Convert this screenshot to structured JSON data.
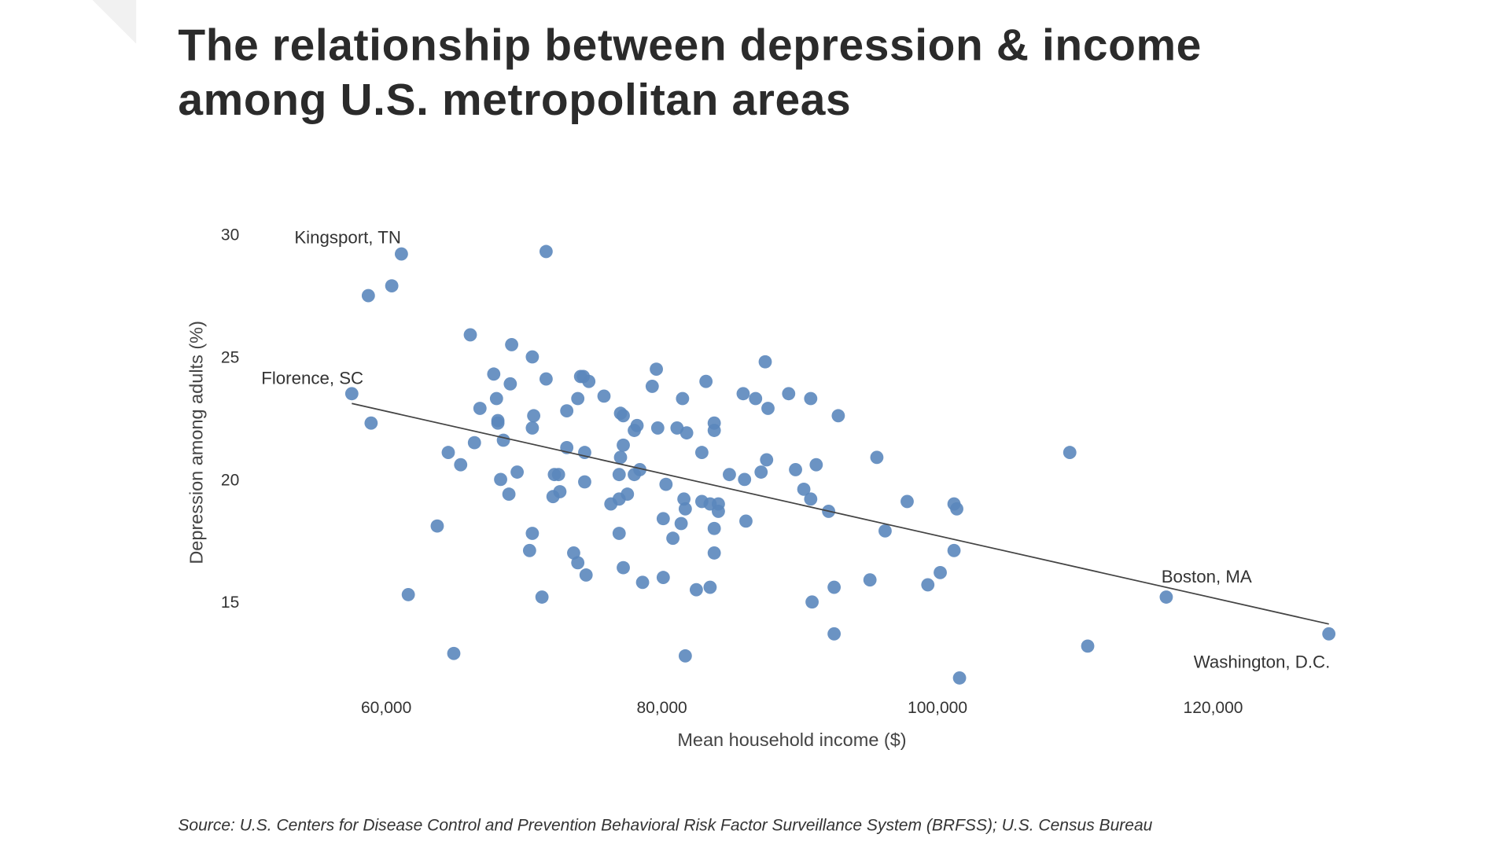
{
  "title_line1": "The relationship between depression & income",
  "title_line2": "among U.S. metropolitan areas",
  "source": "Source: U.S. Centers for Disease Control and Prevention Behavioral Risk Factor Surveillance System (BRFSS); U.S. Census Bureau",
  "chart_data": {
    "type": "scatter",
    "title": "The relationship between depression & income among U.S. metropolitan areas",
    "xlabel": "Mean household income ($)",
    "ylabel": "Depression among adults (%)",
    "xlim": [
      52500,
      130000
    ],
    "ylim": [
      11.5,
      30
    ],
    "x_ticks": [
      "60,000",
      "80,000",
      "100,000",
      "120,000"
    ],
    "x_tick_values": [
      60000,
      80000,
      100000,
      120000
    ],
    "y_ticks": [
      "30",
      "25",
      "20",
      "15"
    ],
    "y_tick_values": [
      30,
      25,
      20,
      15
    ],
    "grid": false,
    "point_color": "#5b87bd",
    "trendline": {
      "x": [
        57500,
        128400
      ],
      "y": [
        23.1,
        14.1
      ],
      "color": "#444444"
    },
    "annotations": [
      {
        "label": "Kingsport, TN",
        "x": 61100,
        "y": 29.2
      },
      {
        "label": "Florence, SC",
        "x": 57500,
        "y": 23.5
      },
      {
        "label": "Boston, MA",
        "x": 116600,
        "y": 15.2
      },
      {
        "label": "Washington, D.C.",
        "x": 128400,
        "y": 13.7
      }
    ],
    "points": [
      [
        61100,
        29.2
      ],
      [
        71600,
        29.3
      ],
      [
        58700,
        27.5
      ],
      [
        60400,
        27.9
      ],
      [
        66100,
        25.9
      ],
      [
        69100,
        25.5
      ],
      [
        70600,
        25.0
      ],
      [
        67800,
        24.3
      ],
      [
        71600,
        24.1
      ],
      [
        74100,
        24.2
      ],
      [
        74300,
        24.2
      ],
      [
        74700,
        24.0
      ],
      [
        79600,
        24.5
      ],
      [
        87500,
        24.8
      ],
      [
        57500,
        23.5
      ],
      [
        69000,
        23.9
      ],
      [
        68000,
        23.3
      ],
      [
        73900,
        23.3
      ],
      [
        75800,
        23.4
      ],
      [
        79300,
        23.8
      ],
      [
        83200,
        24.0
      ],
      [
        85900,
        23.5
      ],
      [
        86800,
        23.3
      ],
      [
        89200,
        23.5
      ],
      [
        90800,
        23.3
      ],
      [
        81500,
        23.3
      ],
      [
        66800,
        22.9
      ],
      [
        73100,
        22.8
      ],
      [
        70700,
        22.6
      ],
      [
        77000,
        22.7
      ],
      [
        77200,
        22.6
      ],
      [
        87700,
        22.9
      ],
      [
        92800,
        22.6
      ],
      [
        58900,
        22.3
      ],
      [
        68100,
        22.4
      ],
      [
        68100,
        22.3
      ],
      [
        70600,
        22.1
      ],
      [
        78000,
        22.0
      ],
      [
        78200,
        22.2
      ],
      [
        79700,
        22.1
      ],
      [
        81100,
        22.1
      ],
      [
        81800,
        21.9
      ],
      [
        83800,
        22.3
      ],
      [
        83800,
        22.0
      ],
      [
        64500,
        21.1
      ],
      [
        66400,
        21.5
      ],
      [
        68500,
        21.6
      ],
      [
        73100,
        21.3
      ],
      [
        74400,
        21.1
      ],
      [
        77200,
        21.4
      ],
      [
        82900,
        21.1
      ],
      [
        87600,
        20.8
      ],
      [
        95600,
        20.9
      ],
      [
        109600,
        21.1
      ],
      [
        65400,
        20.6
      ],
      [
        77000,
        20.9
      ],
      [
        91200,
        20.6
      ],
      [
        69500,
        20.3
      ],
      [
        72200,
        20.2
      ],
      [
        72500,
        20.2
      ],
      [
        76900,
        20.2
      ],
      [
        78000,
        20.2
      ],
      [
        78400,
        20.4
      ],
      [
        84900,
        20.2
      ],
      [
        86000,
        20.0
      ],
      [
        87200,
        20.3
      ],
      [
        89700,
        20.4
      ],
      [
        68300,
        20.0
      ],
      [
        74400,
        19.9
      ],
      [
        80300,
        19.8
      ],
      [
        68900,
        19.4
      ],
      [
        72100,
        19.3
      ],
      [
        72600,
        19.5
      ],
      [
        77500,
        19.4
      ],
      [
        76900,
        19.2
      ],
      [
        76300,
        19.0
      ],
      [
        81600,
        19.2
      ],
      [
        82900,
        19.1
      ],
      [
        83500,
        19.0
      ],
      [
        84100,
        19.0
      ],
      [
        90300,
        19.6
      ],
      [
        90800,
        19.2
      ],
      [
        97800,
        19.1
      ],
      [
        101200,
        19.0
      ],
      [
        101400,
        18.8
      ],
      [
        81700,
        18.8
      ],
      [
        84100,
        18.7
      ],
      [
        92100,
        18.7
      ],
      [
        80100,
        18.4
      ],
      [
        81400,
        18.2
      ],
      [
        86100,
        18.3
      ],
      [
        83800,
        18.0
      ],
      [
        63700,
        18.1
      ],
      [
        70600,
        17.8
      ],
      [
        76900,
        17.8
      ],
      [
        96200,
        17.9
      ],
      [
        80800,
        17.6
      ],
      [
        73600,
        17.0
      ],
      [
        70400,
        17.1
      ],
      [
        83800,
        17.0
      ],
      [
        101200,
        17.1
      ],
      [
        73900,
        16.6
      ],
      [
        77200,
        16.4
      ],
      [
        74500,
        16.1
      ],
      [
        78600,
        15.8
      ],
      [
        80100,
        16.0
      ],
      [
        82500,
        15.5
      ],
      [
        83500,
        15.6
      ],
      [
        95100,
        15.9
      ],
      [
        92500,
        15.6
      ],
      [
        99300,
        15.7
      ],
      [
        100200,
        16.2
      ],
      [
        61600,
        15.3
      ],
      [
        71300,
        15.2
      ],
      [
        90900,
        15.0
      ],
      [
        116600,
        15.2
      ],
      [
        92500,
        13.7
      ],
      [
        128400,
        13.7
      ],
      [
        110900,
        13.2
      ],
      [
        64900,
        12.9
      ],
      [
        81700,
        12.8
      ],
      [
        101600,
        11.9
      ]
    ]
  }
}
